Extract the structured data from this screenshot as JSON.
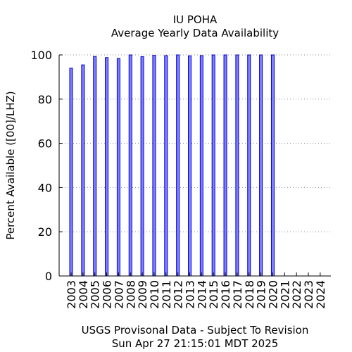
{
  "chart_data": {
    "type": "bar",
    "title": "IU POHA",
    "subtitle": "Average Yearly Data Availability",
    "ylabel": "Percent Available ([00]/LHZ)",
    "xlabel": "",
    "ylim": [
      0,
      100
    ],
    "yticks": [
      "0",
      "20",
      "40",
      "60",
      "80",
      "100"
    ],
    "grid": true,
    "categories": [
      "2003",
      "2004",
      "2005",
      "2006",
      "2007",
      "2008",
      "2009",
      "2010",
      "2011",
      "2012",
      "2013",
      "2014",
      "2015",
      "2016",
      "2017",
      "2018",
      "2019",
      "2020",
      "2021",
      "2022",
      "2023",
      "2024"
    ],
    "values": [
      94,
      95.5,
      99.3,
      98.8,
      98.4,
      100,
      99.2,
      99.8,
      99.7,
      100,
      99.6,
      99.7,
      100,
      100,
      100,
      100,
      100,
      100,
      0,
      0,
      0,
      0
    ],
    "colors": {
      "bar_fill": "#8080ff",
      "bar_stroke": "#0000cc",
      "grid": "#888888"
    }
  },
  "footer": {
    "line1": "USGS Provisonal Data - Subject To Revision",
    "line2": "Sun Apr 27 21:15:01 MDT 2025"
  }
}
